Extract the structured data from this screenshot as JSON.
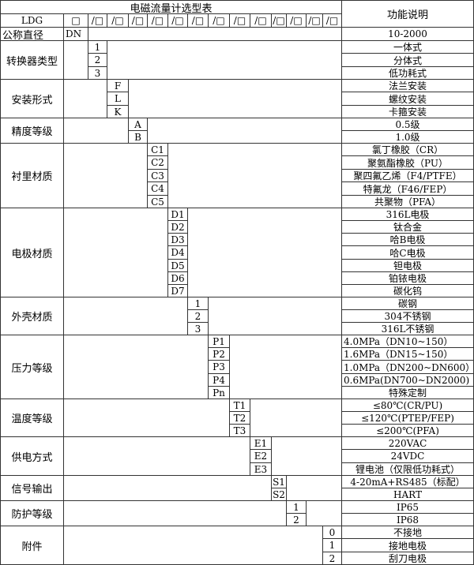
{
  "title": "电磁流量计选型表",
  "function_header": "功能说明",
  "model": "LDG",
  "model_slots": [
    "□",
    "/□",
    "/□",
    "/□",
    "/□",
    "/□",
    "/□",
    "/□",
    "/□",
    "/□",
    "/□",
    "/□",
    "/□",
    "/□"
  ],
  "nominal": {
    "label": "公称直径",
    "code": "DN",
    "desc": "10-2000"
  },
  "sections": [
    {
      "label": "转换器类型",
      "codes": [
        "1",
        "2",
        "3"
      ],
      "descs": [
        "一体式",
        "分体式",
        "低功耗式"
      ]
    },
    {
      "label": "安装形式",
      "codes": [
        "F",
        "L",
        "K"
      ],
      "descs": [
        "法兰安装",
        "螺纹安装",
        "卡箍安装"
      ]
    },
    {
      "label": "精度等级",
      "codes": [
        "A",
        "B"
      ],
      "descs": [
        "0.5级",
        "1.0级"
      ]
    },
    {
      "label": "衬里材质",
      "codes": [
        "C1",
        "C2",
        "C3",
        "C4",
        "C5"
      ],
      "descs": [
        "氯丁橡胶（CR）",
        "聚氨酯橡胶（PU）",
        "聚四氟乙烯（F4/PTFE）",
        "特氟龙（F46/FEP）",
        "共聚物（PFA）"
      ]
    },
    {
      "label": "电极材质",
      "codes": [
        "D1",
        "D2",
        "D3",
        "D4",
        "D5",
        "D6",
        "D7"
      ],
      "descs": [
        "316L电极",
        "钛合金",
        "哈B电极",
        "哈C电极",
        "钽电极",
        "铂铱电极",
        "碳化钨"
      ]
    },
    {
      "label": "外壳材质",
      "codes": [
        "1",
        "2",
        "3"
      ],
      "descs": [
        "碳钢",
        "304不锈钢",
        "316L不锈钢"
      ]
    },
    {
      "label": "压力等级",
      "codes": [
        "P1",
        "P2",
        "P3",
        "P4",
        "Pn"
      ],
      "descs": [
        "4.0MPa（DN10~150）",
        "1.6MPa（DN15~150）",
        "1.0MPa（DN200~DN600）",
        "0.6MPa(DN700~DN2000)",
        "特殊定制"
      ]
    },
    {
      "label": "温度等级",
      "codes": [
        "T1",
        "T2",
        "T3"
      ],
      "descs": [
        "≤80℃(CR/PU)",
        "≤120℃(PTEP/FEP)",
        "≤200℃(PFA)"
      ]
    },
    {
      "label": "供电方式",
      "codes": [
        "E1",
        "E2",
        "E3"
      ],
      "descs": [
        "220VAC",
        "24VDC",
        "锂电池（仅限低功耗式）"
      ]
    },
    {
      "label": "信号输出",
      "codes": [
        "S1",
        "S2"
      ],
      "descs": [
        "4-20mA+RS485（标配）",
        "HART"
      ]
    },
    {
      "label": "防护等级",
      "codes": [
        "1",
        "2"
      ],
      "descs": [
        "IP65",
        "IP68"
      ]
    },
    {
      "label": "附件",
      "codes": [
        "0",
        "1",
        "2"
      ],
      "descs": [
        "不接地",
        "接地电极",
        "刮刀电极"
      ]
    }
  ]
}
